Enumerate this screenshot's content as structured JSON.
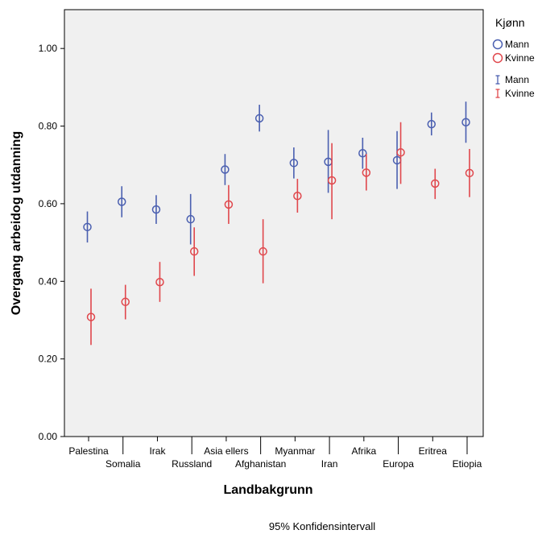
{
  "chart_data": {
    "type": "scatter",
    "subtype": "error-bar",
    "xlabel": "Landbakgrunn",
    "ylabel": "Overgang arbeidog utdanning",
    "ylim": [
      0,
      1.1
    ],
    "yticks": [
      "0.00",
      "0.20",
      "0.40",
      "0.60",
      "0.80",
      "1.00"
    ],
    "ytick_values": [
      0,
      0.2,
      0.4,
      0.6,
      0.8,
      1.0
    ],
    "grid": false,
    "categories": [
      "Palestina",
      "Somalia",
      "Irak",
      "Russland",
      "Asia ellers",
      "Afghanistan",
      "Myanmar",
      "Iran",
      "Afrika",
      "Europa",
      "Eritrea",
      "Etiopia"
    ],
    "series": [
      {
        "name": "Mann",
        "color": "#4a5fb0",
        "marker": "circle",
        "values": [
          0.54,
          0.605,
          0.585,
          0.56,
          0.688,
          0.82,
          0.705,
          0.708,
          0.73,
          0.712,
          0.805,
          0.81
        ],
        "ci_low": [
          0.5,
          0.565,
          0.548,
          0.495,
          0.648,
          0.786,
          0.665,
          0.628,
          0.69,
          0.638,
          0.776,
          0.757
        ],
        "ci_high": [
          0.58,
          0.645,
          0.622,
          0.625,
          0.728,
          0.855,
          0.745,
          0.79,
          0.77,
          0.787,
          0.835,
          0.863
        ]
      },
      {
        "name": "Kvinne",
        "color": "#e0474c",
        "marker": "circle",
        "values": [
          0.308,
          0.347,
          0.398,
          0.477,
          0.598,
          0.477,
          0.62,
          0.66,
          0.68,
          0.732,
          0.652,
          0.679
        ],
        "ci_low": [
          0.236,
          0.302,
          0.347,
          0.414,
          0.548,
          0.395,
          0.577,
          0.56,
          0.634,
          0.651,
          0.612,
          0.617
        ],
        "ci_high": [
          0.381,
          0.391,
          0.45,
          0.539,
          0.648,
          0.56,
          0.664,
          0.756,
          0.728,
          0.81,
          0.69,
          0.741
        ]
      }
    ],
    "legend": {
      "title": "Kjønn",
      "placement": "right",
      "marker_items": [
        "Mann",
        "Kvinne"
      ],
      "errorbar_items": [
        "Mann",
        "Kvinne"
      ]
    },
    "footnote": "95% Konfidensintervall",
    "plot_background": "#f0f0f0"
  }
}
